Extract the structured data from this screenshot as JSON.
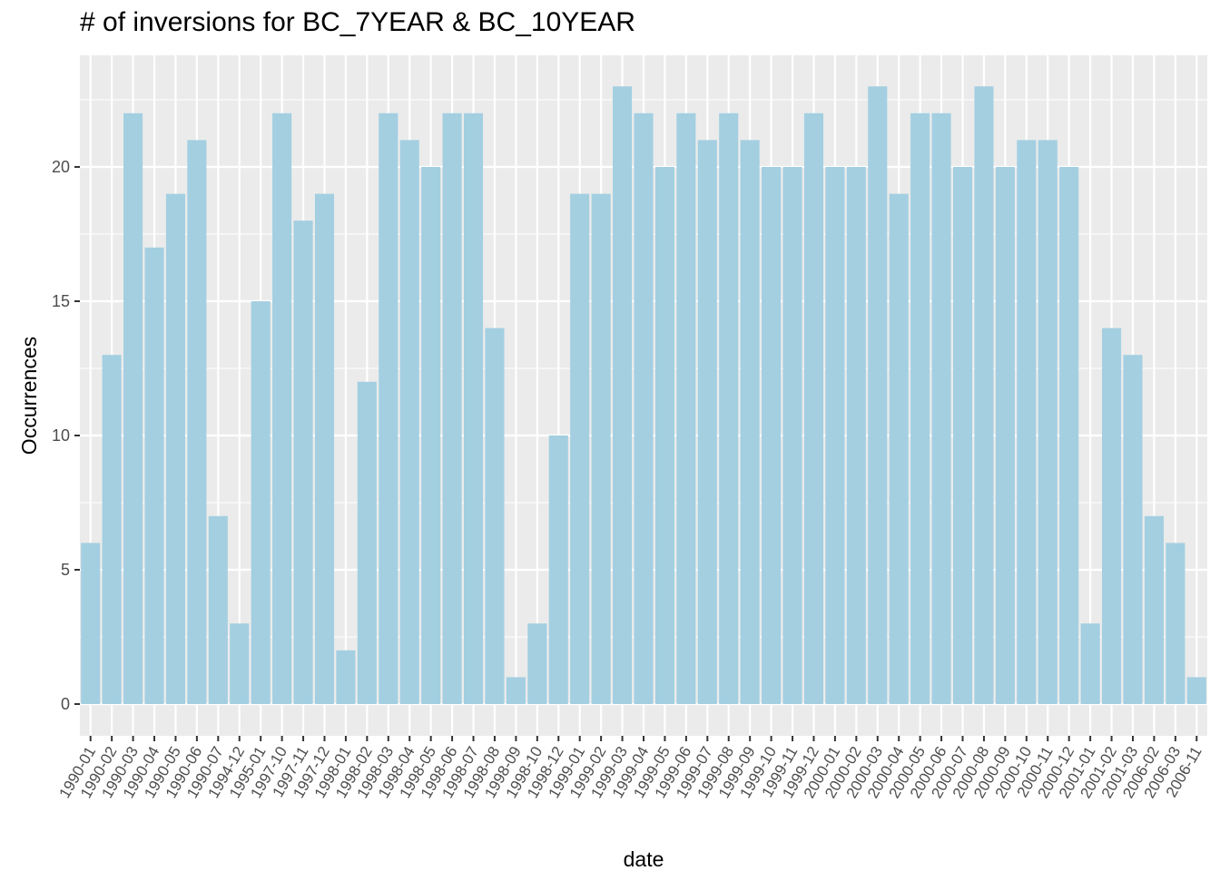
{
  "chart_data": {
    "type": "bar",
    "title": "# of inversions for BC_7YEAR & BC_10YEAR",
    "xlabel": "date",
    "ylabel": "Occurrences",
    "ylim": [
      0,
      23
    ],
    "yticks": [
      0,
      5,
      10,
      15,
      20
    ],
    "grid": true,
    "bar_color": "#a3cfe1",
    "panel_color": "#ebebeb",
    "grid_color": "#ffffff",
    "categories": [
      "1990-01",
      "1990-02",
      "1990-03",
      "1990-04",
      "1990-05",
      "1990-06",
      "1990-07",
      "1994-12",
      "1995-01",
      "1997-10",
      "1997-11",
      "1997-12",
      "1998-01",
      "1998-02",
      "1998-03",
      "1998-04",
      "1998-05",
      "1998-06",
      "1998-07",
      "1998-08",
      "1998-09",
      "1998-10",
      "1998-12",
      "1999-01",
      "1999-02",
      "1999-03",
      "1999-04",
      "1999-05",
      "1999-06",
      "1999-07",
      "1999-08",
      "1999-09",
      "1999-10",
      "1999-11",
      "1999-12",
      "2000-01",
      "2000-02",
      "2000-03",
      "2000-04",
      "2000-05",
      "2000-06",
      "2000-07",
      "2000-08",
      "2000-09",
      "2000-10",
      "2000-11",
      "2000-12",
      "2001-01",
      "2001-02",
      "2001-03",
      "2006-02",
      "2006-03",
      "2006-11"
    ],
    "values": [
      6,
      13,
      22,
      17,
      19,
      21,
      7,
      3,
      15,
      22,
      18,
      19,
      2,
      12,
      22,
      21,
      20,
      22,
      22,
      14,
      1,
      3,
      10,
      19,
      19,
      23,
      22,
      20,
      22,
      21,
      22,
      21,
      20,
      20,
      22,
      20,
      20,
      23,
      19,
      22,
      22,
      20,
      23,
      20,
      21,
      21,
      20,
      3,
      14,
      13,
      7,
      6,
      1
    ]
  }
}
